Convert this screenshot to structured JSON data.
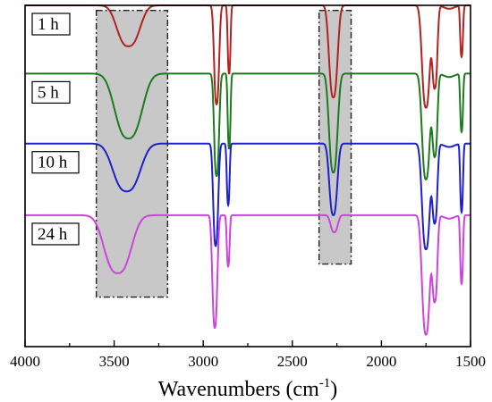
{
  "chart_data": {
    "type": "line",
    "title": "",
    "xlabel": "Wavenumbers (cm",
    "xlabel_sup": "-1",
    "xlabel_close": ")",
    "ylabel": "",
    "xlim": [
      4000,
      1500
    ],
    "x_reversed": true,
    "x_ticks": [
      4000,
      3500,
      3000,
      2500,
      2000,
      1500
    ],
    "grid": false,
    "legend": "inline labels at left",
    "highlight_regions": [
      {
        "x_from": 3600,
        "x_to": 3200,
        "fill": "#c8c8c8",
        "style": "dash-dot"
      },
      {
        "x_from": 2350,
        "x_to": 2170,
        "fill": "#c8c8c8",
        "style": "dash-dot"
      }
    ],
    "series": [
      {
        "name": "1 h",
        "color": "#b22222",
        "baseline": 1.0,
        "bands": [
          {
            "x": 3420,
            "depth": 0.12,
            "width": 80
          },
          {
            "x": 2925,
            "depth": 0.29,
            "width": 18
          },
          {
            "x": 2855,
            "depth": 0.2,
            "width": 10
          },
          {
            "x": 2270,
            "depth": 0.27,
            "width": 30
          },
          {
            "x": 1750,
            "depth": 0.3,
            "width": 28
          },
          {
            "x": 1700,
            "depth": 0.24,
            "width": 18
          },
          {
            "x": 1550,
            "depth": 0.15,
            "width": 10
          }
        ]
      },
      {
        "name": "5 h",
        "color": "#1e7a1e",
        "baseline": 0.8,
        "bands": [
          {
            "x": 3420,
            "depth": 0.19,
            "width": 95
          },
          {
            "x": 2925,
            "depth": 0.3,
            "width": 18
          },
          {
            "x": 2855,
            "depth": 0.22,
            "width": 10
          },
          {
            "x": 2270,
            "depth": 0.29,
            "width": 30
          },
          {
            "x": 1750,
            "depth": 0.31,
            "width": 28
          },
          {
            "x": 1700,
            "depth": 0.24,
            "width": 18
          },
          {
            "x": 1550,
            "depth": 0.17,
            "width": 10
          }
        ]
      },
      {
        "name": "10 h",
        "color": "#1f1fcc",
        "baseline": 0.595,
        "bands": [
          {
            "x": 3430,
            "depth": 0.14,
            "width": 95
          },
          {
            "x": 2930,
            "depth": 0.3,
            "width": 18
          },
          {
            "x": 2860,
            "depth": 0.18,
            "width": 10
          },
          {
            "x": 2270,
            "depth": 0.21,
            "width": 28
          },
          {
            "x": 1750,
            "depth": 0.31,
            "width": 28
          },
          {
            "x": 1700,
            "depth": 0.23,
            "width": 18
          },
          {
            "x": 1550,
            "depth": 0.2,
            "width": 10
          }
        ]
      },
      {
        "name": "24 h",
        "color": "#cc44dd",
        "baseline": 0.385,
        "bands": [
          {
            "x": 3480,
            "depth": 0.17,
            "width": 95
          },
          {
            "x": 2935,
            "depth": 0.33,
            "width": 18
          },
          {
            "x": 2860,
            "depth": 0.15,
            "width": 10
          },
          {
            "x": 2265,
            "depth": 0.05,
            "width": 25
          },
          {
            "x": 1750,
            "depth": 0.35,
            "width": 28
          },
          {
            "x": 1700,
            "depth": 0.25,
            "width": 18
          },
          {
            "x": 1550,
            "depth": 0.2,
            "width": 10
          }
        ]
      }
    ]
  }
}
